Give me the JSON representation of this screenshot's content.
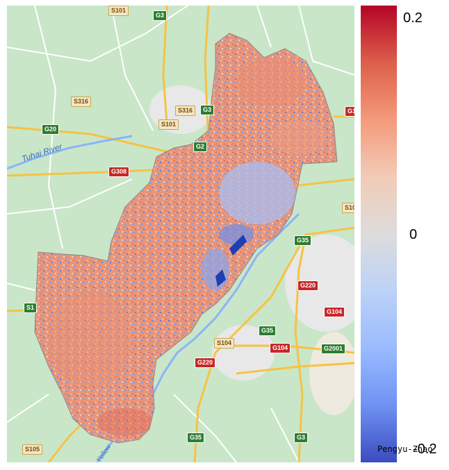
{
  "map": {
    "river_label": "Tuhai River",
    "river_label_lower": "Yellow",
    "road_shields": [
      {
        "text": "S101",
        "kind": "y"
      },
      {
        "text": "G3",
        "kind": "g"
      },
      {
        "text": "S316",
        "kind": "y"
      },
      {
        "text": "S316",
        "kind": "y"
      },
      {
        "text": "G3",
        "kind": "g"
      },
      {
        "text": "S101",
        "kind": "y"
      },
      {
        "text": "G20",
        "kind": "g"
      },
      {
        "text": "G2",
        "kind": "g"
      },
      {
        "text": "G308",
        "kind": "r"
      },
      {
        "text": "G1",
        "kind": "r"
      },
      {
        "text": "G35",
        "kind": "g"
      },
      {
        "text": "S1",
        "kind": "g"
      },
      {
        "text": "G220",
        "kind": "r"
      },
      {
        "text": "G104",
        "kind": "r"
      },
      {
        "text": "G35",
        "kind": "g"
      },
      {
        "text": "S104",
        "kind": "y"
      },
      {
        "text": "G104",
        "kind": "r"
      },
      {
        "text": "G2001",
        "kind": "g"
      },
      {
        "text": "G220",
        "kind": "r"
      },
      {
        "text": "G35",
        "kind": "g"
      },
      {
        "text": "G3",
        "kind": "g"
      },
      {
        "text": "S105",
        "kind": "y"
      },
      {
        "text": "S10",
        "kind": "y"
      }
    ],
    "colors": {
      "land": "#c9e6c9",
      "urban": "#e8e8e8",
      "road": "#f6c244",
      "minor_road": "#ffffff",
      "water": "#8ab4f8"
    }
  },
  "colorbar": {
    "max_label": "0.2",
    "mid_label": "0",
    "min_label": "-0.2",
    "range": [
      -0.2,
      0.2
    ],
    "colormap": "coolwarm"
  },
  "credit": "Pengyu-Zhao"
}
